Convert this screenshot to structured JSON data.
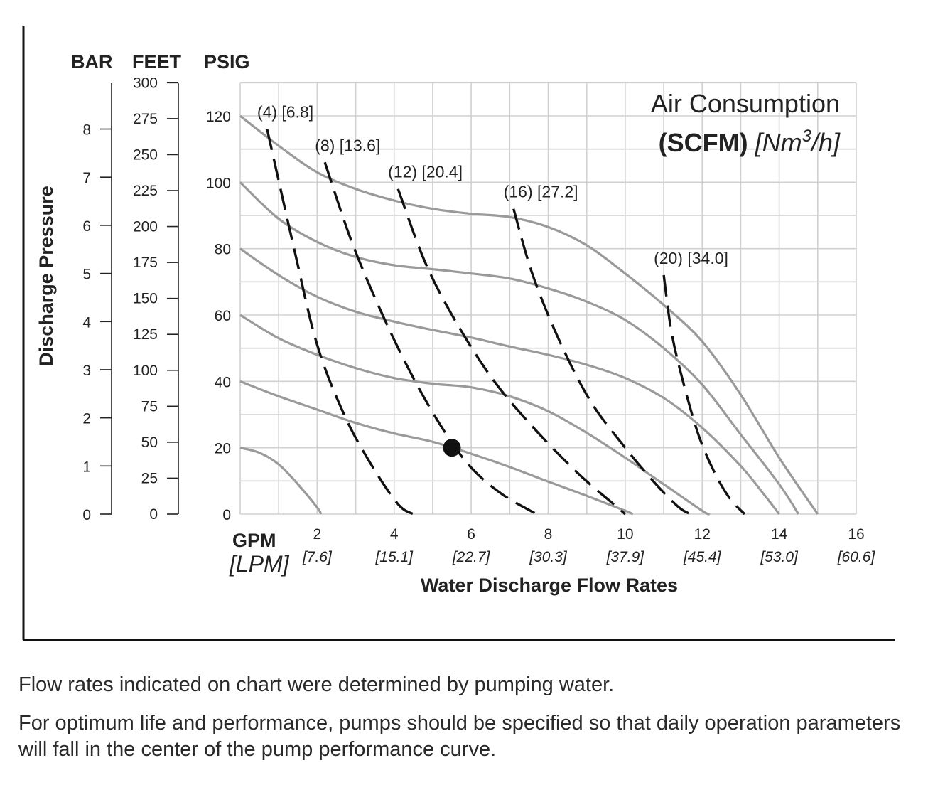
{
  "chart_data": {
    "type": "line",
    "xlabel": "Water Discharge Flow Rates",
    "x_unit_primary": "GPM",
    "x_unit_secondary": "[LPM]",
    "xlim": [
      0,
      16
    ],
    "x_ticks": [
      {
        "gpm": 2,
        "lpm": "[7.6]"
      },
      {
        "gpm": 4,
        "lpm": "[15.1]"
      },
      {
        "gpm": 6,
        "lpm": "[22.7]"
      },
      {
        "gpm": 8,
        "lpm": "[30.3]"
      },
      {
        "gpm": 10,
        "lpm": "[37.9]"
      },
      {
        "gpm": 12,
        "lpm": "[45.4]"
      },
      {
        "gpm": 14,
        "lpm": "[53.0]"
      },
      {
        "gpm": 16,
        "lpm": "[60.6]"
      }
    ],
    "ylabel": "Discharge Pressure",
    "ylim": [
      0,
      130
    ],
    "y_axes": [
      {
        "unit": "BAR",
        "ticks": [
          "0",
          "1",
          "2",
          "3",
          "4",
          "5",
          "6",
          "7",
          "8"
        ],
        "values": [
          0,
          1,
          2,
          3,
          4,
          5,
          6,
          7,
          8
        ],
        "per_psi": 14.5038
      },
      {
        "unit": "FEET",
        "ticks": [
          "0",
          "25",
          "50",
          "75",
          "100",
          "125",
          "150",
          "175",
          "200",
          "225",
          "250",
          "275",
          "300"
        ],
        "values": [
          0,
          25,
          50,
          75,
          100,
          125,
          150,
          175,
          200,
          225,
          250,
          275,
          300
        ],
        "per_psi": 0.43333
      },
      {
        "unit": "PSIG",
        "ticks": [
          "0",
          "20",
          "40",
          "60",
          "80",
          "100",
          "120"
        ],
        "values": [
          0,
          20,
          40,
          60,
          80,
          100,
          120
        ],
        "per_psi": 1
      }
    ],
    "grid": true,
    "legend": {
      "title": "Air Consumption",
      "subtitle_bold": "(SCFM)",
      "subtitle_italic_pre": "[Nm",
      "subtitle_sup": "3",
      "subtitle_italic_post": "/h]"
    },
    "series": [
      {
        "name": "",
        "values_psi_at_20": 20,
        "x": [
          0,
          0.5,
          1,
          1.5,
          2.0,
          2.1
        ],
        "y": [
          20,
          18.5,
          15,
          9,
          2,
          0
        ]
      },
      {
        "name": "",
        "x": [
          0,
          1,
          2,
          3,
          4,
          5,
          6,
          7,
          8,
          9,
          10,
          10.2
        ],
        "y": [
          40,
          35.5,
          31.5,
          27.5,
          24.3,
          21.8,
          18.2,
          14.2,
          9.8,
          5.5,
          1,
          0
        ]
      },
      {
        "name": "",
        "x": [
          0,
          1,
          2,
          3,
          4,
          5,
          6,
          7,
          8,
          9,
          10,
          11,
          12,
          12.2
        ],
        "y": [
          60,
          53,
          48,
          44,
          41,
          39.3,
          38.2,
          35.5,
          31,
          24.5,
          17,
          9,
          1,
          0
        ]
      },
      {
        "name": "",
        "x": [
          0,
          1,
          2,
          3,
          4,
          5,
          6,
          7,
          8,
          9,
          10,
          11,
          12,
          13,
          13.6,
          14.0
        ],
        "y": [
          80,
          72,
          65.5,
          61,
          58,
          55.5,
          53.2,
          50.5,
          48,
          45,
          41,
          35,
          26,
          14.5,
          6,
          0
        ]
      },
      {
        "name": "",
        "x": [
          0,
          1,
          2,
          3,
          4,
          5,
          6,
          7,
          8,
          9,
          10,
          11,
          12,
          13,
          14,
          14.5
        ],
        "y": [
          100,
          89,
          82,
          77.5,
          75,
          73.8,
          72.5,
          71,
          68,
          64,
          58.5,
          50,
          39,
          24,
          9,
          0
        ]
      },
      {
        "name": "",
        "x": [
          0,
          1,
          2,
          3,
          4,
          5,
          6,
          7,
          8,
          9,
          10,
          11,
          12,
          13,
          14,
          15
        ],
        "y": [
          120,
          111,
          103,
          98,
          94.5,
          92,
          90.5,
          89.5,
          86.5,
          81,
          72.5,
          63,
          52,
          36,
          17,
          0
        ]
      }
    ],
    "air_consumption_lines": [
      {
        "label": "(4) [6.8]",
        "x": [
          0.7,
          1.4,
          2.0,
          2.7,
          3.4,
          4.1,
          4.5
        ],
        "y": [
          116,
          80,
          51,
          30,
          15,
          3,
          0
        ]
      },
      {
        "label": "(8) [13.6]",
        "x": [
          2.2,
          2.9,
          3.7,
          4.5,
          5.3,
          6.0,
          6.8,
          7.7
        ],
        "y": [
          106,
          82,
          60,
          41,
          25,
          14,
          6,
          0
        ]
      },
      {
        "label": "(12) [20.4]",
        "x": [
          4.1,
          4.8,
          5.6,
          6.6,
          7.7,
          8.8,
          9.7,
          10.0
        ],
        "y": [
          98,
          76,
          58,
          40,
          25,
          12,
          3,
          0
        ]
      },
      {
        "label": "(16) [27.2]",
        "x": [
          7.1,
          7.6,
          8.3,
          9.1,
          10.0,
          10.8,
          11.4,
          11.7
        ],
        "y": [
          92,
          72,
          52,
          34,
          20,
          9,
          2,
          0
        ]
      },
      {
        "label": "(20) [34.0]",
        "x": [
          11.0,
          11.2,
          11.5,
          11.9,
          12.3,
          12.7,
          13.1
        ],
        "y": [
          72,
          55,
          40,
          24,
          13,
          5,
          0
        ]
      }
    ],
    "operating_point": {
      "x": 5.5,
      "y": 20
    }
  },
  "notes": [
    "Flow rates indicated on chart were determined by pumping water.",
    "For optimum life and performance, pumps should be specified so that daily operation parameters will fall in the center of the pump performance curve."
  ],
  "colors": {
    "curve": "#9a9a9a",
    "grid": "#d0d0d0",
    "dash": "#111111",
    "text": "#222222"
  }
}
